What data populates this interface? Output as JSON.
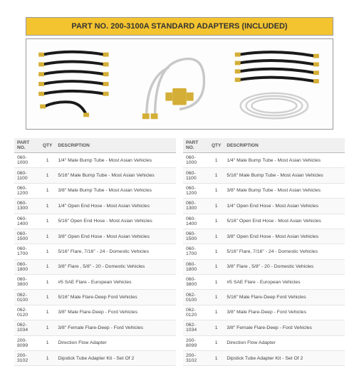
{
  "banner": "PART NO. 200-3100A STANDARD ADAPTERS (INCLUDED)",
  "headers": {
    "pn": "PART NO.",
    "qty": "QTY",
    "desc": "DESCRIPTION"
  },
  "table": {
    "rows": [
      {
        "pn": "060-1000",
        "qty": "1",
        "desc": "1/4\" Male Bump Tube - Most Asian Vehicles"
      },
      {
        "pn": "060-1100",
        "qty": "1",
        "desc": "5/16\" Male Bump Tube - Most Asian Vehicles"
      },
      {
        "pn": "060-1200",
        "qty": "1",
        "desc": "3/8\" Male Bump Tube - Most Asian Vehicles"
      },
      {
        "pn": "060-1300",
        "qty": "1",
        "desc": "1/4\" Open End Hose - Most Asian Vehicles"
      },
      {
        "pn": "060-1400",
        "qty": "1",
        "desc": "5/16\" Open End Hose - Most Asian Vehicles"
      },
      {
        "pn": "060-1500",
        "qty": "1",
        "desc": "3/8\" Open End Hose - Most Asian Vehicles"
      },
      {
        "pn": "060-1700",
        "qty": "1",
        "desc": "5/16\" Flare, 7/16\" - 24 - Domestic Vehicles"
      },
      {
        "pn": "060-1800",
        "qty": "1",
        "desc": "3/8\" Flare , 5/8\" - 20 - Domestic Vehicles"
      },
      {
        "pn": "060-3800",
        "qty": "1",
        "desc": "#5 SAE Flare - European Vehicles"
      },
      {
        "pn": "062-0100",
        "qty": "1",
        "desc": "5/16\" Male Flare-Deep Ford Vehicles"
      },
      {
        "pn": "062-0120",
        "qty": "1",
        "desc": "3/8\" Male Flare-Deep - Ford Vehicles"
      },
      {
        "pn": "062-1034",
        "qty": "1",
        "desc": "3/8\" Female Flare-Deep - Ford Vehicles"
      },
      {
        "pn": "200-8099",
        "qty": "1",
        "desc": "Direction Flow Adapter"
      },
      {
        "pn": "200-3102",
        "qty": "1",
        "desc": "Dipstick Tube Adapter Kit - Set Of 2"
      }
    ]
  },
  "colors": {
    "banner_bg": "#f4c430",
    "hose": "#1a1a1a",
    "fitting": "#d4af37",
    "tube": "#cccccc"
  }
}
